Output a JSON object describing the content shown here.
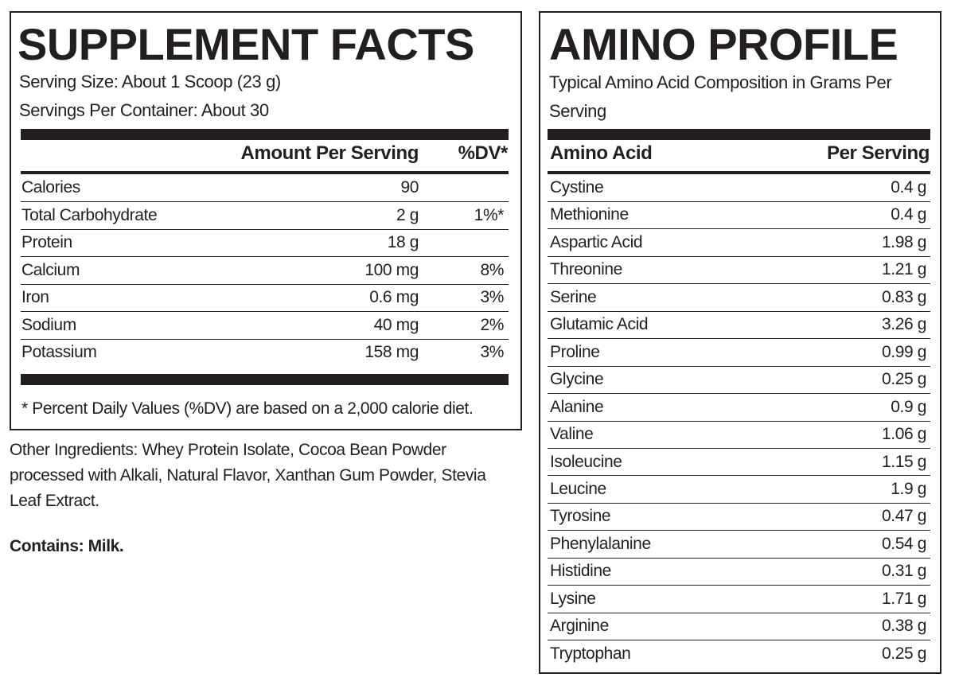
{
  "supplement_facts": {
    "title": "SUPPLEMENT FACTS",
    "serving_size": "Serving Size: About 1 Scoop (23 g)",
    "servings_per_container": "Servings Per Container: About 30",
    "amount_header": "Amount Per Serving",
    "dv_header": "%DV*",
    "rows": [
      {
        "name": "Calories",
        "amount": "90"
      },
      {
        "name": "Total Carbohydrate",
        "amount": "2 g",
        "dv": "1%*"
      },
      {
        "name": "Protein",
        "amount": "18 g"
      },
      {
        "name": "Calcium",
        "amount": "100 mg",
        "dv": "8%"
      },
      {
        "name": "Iron",
        "amount": "0.6 mg",
        "dv": "3%"
      },
      {
        "name": "Sodium",
        "amount": "40 mg",
        "dv": "2%"
      },
      {
        "name": "Potassium",
        "amount": "158 mg",
        "dv": "3%"
      }
    ],
    "footnote": "* Percent Daily Values (%DV) are based on a 2,000 calorie diet."
  },
  "other_ingredients": "Other Ingredients: Whey Protein Isolate, Cocoa Bean Powder processed with Alkali, Natural Flavor, Xanthan Gum Powder, Stevia Leaf Extract.",
  "contains": "Contains: Milk.",
  "amino_profile": {
    "title": "AMINO PROFILE",
    "subtitle": "Typical Amino Acid Composition in Grams Per Serving",
    "name_header": "Amino Acid",
    "amount_header": "Per Serving",
    "rows": [
      [
        "Cystine",
        "0.4 g"
      ],
      [
        "Methionine",
        "0.4 g"
      ],
      [
        "Aspartic Acid",
        "1.98 g"
      ],
      [
        "Threonine",
        "1.21 g"
      ],
      [
        "Serine",
        "0.83 g"
      ],
      [
        "Glutamic Acid",
        "3.26 g"
      ],
      [
        "Proline",
        "0.99 g"
      ],
      [
        "Glycine",
        "0.25 g"
      ],
      [
        "Alanine",
        "0.9 g"
      ],
      [
        "Valine",
        "1.06 g"
      ],
      [
        "Isoleucine",
        "1.15 g"
      ],
      [
        "Leucine",
        "1.9 g"
      ],
      [
        "Tyrosine",
        "0.47 g"
      ],
      [
        "Phenylalanine",
        "0.54 g"
      ],
      [
        "Histidine",
        "0.31 g"
      ],
      [
        "Lysine",
        "1.71 g"
      ],
      [
        "Arginine",
        "0.38 g"
      ],
      [
        "Tryptophan",
        "0.25 g"
      ]
    ]
  }
}
